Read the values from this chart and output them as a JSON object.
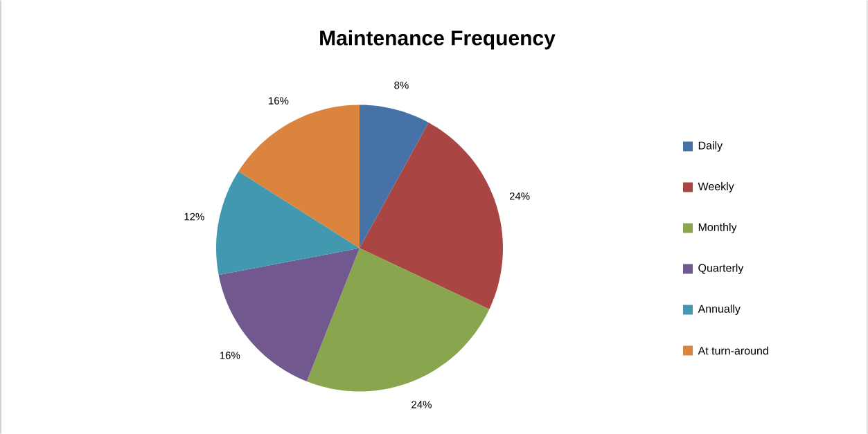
{
  "chart_data": {
    "type": "pie",
    "title": "Maintenance Frequency",
    "categories": [
      "Daily",
      "Weekly",
      "Monthly",
      "Quarterly",
      "Annually",
      "At turn-around"
    ],
    "values": [
      8,
      24,
      24,
      16,
      12,
      16
    ],
    "colors": [
      "#4672a8",
      "#a94543",
      "#89a54e",
      "#71588f",
      "#4298af",
      "#db843d"
    ],
    "value_labels": [
      "8%",
      "24%",
      "24%",
      "16%",
      "12%",
      "16%"
    ],
    "legend": "right"
  }
}
